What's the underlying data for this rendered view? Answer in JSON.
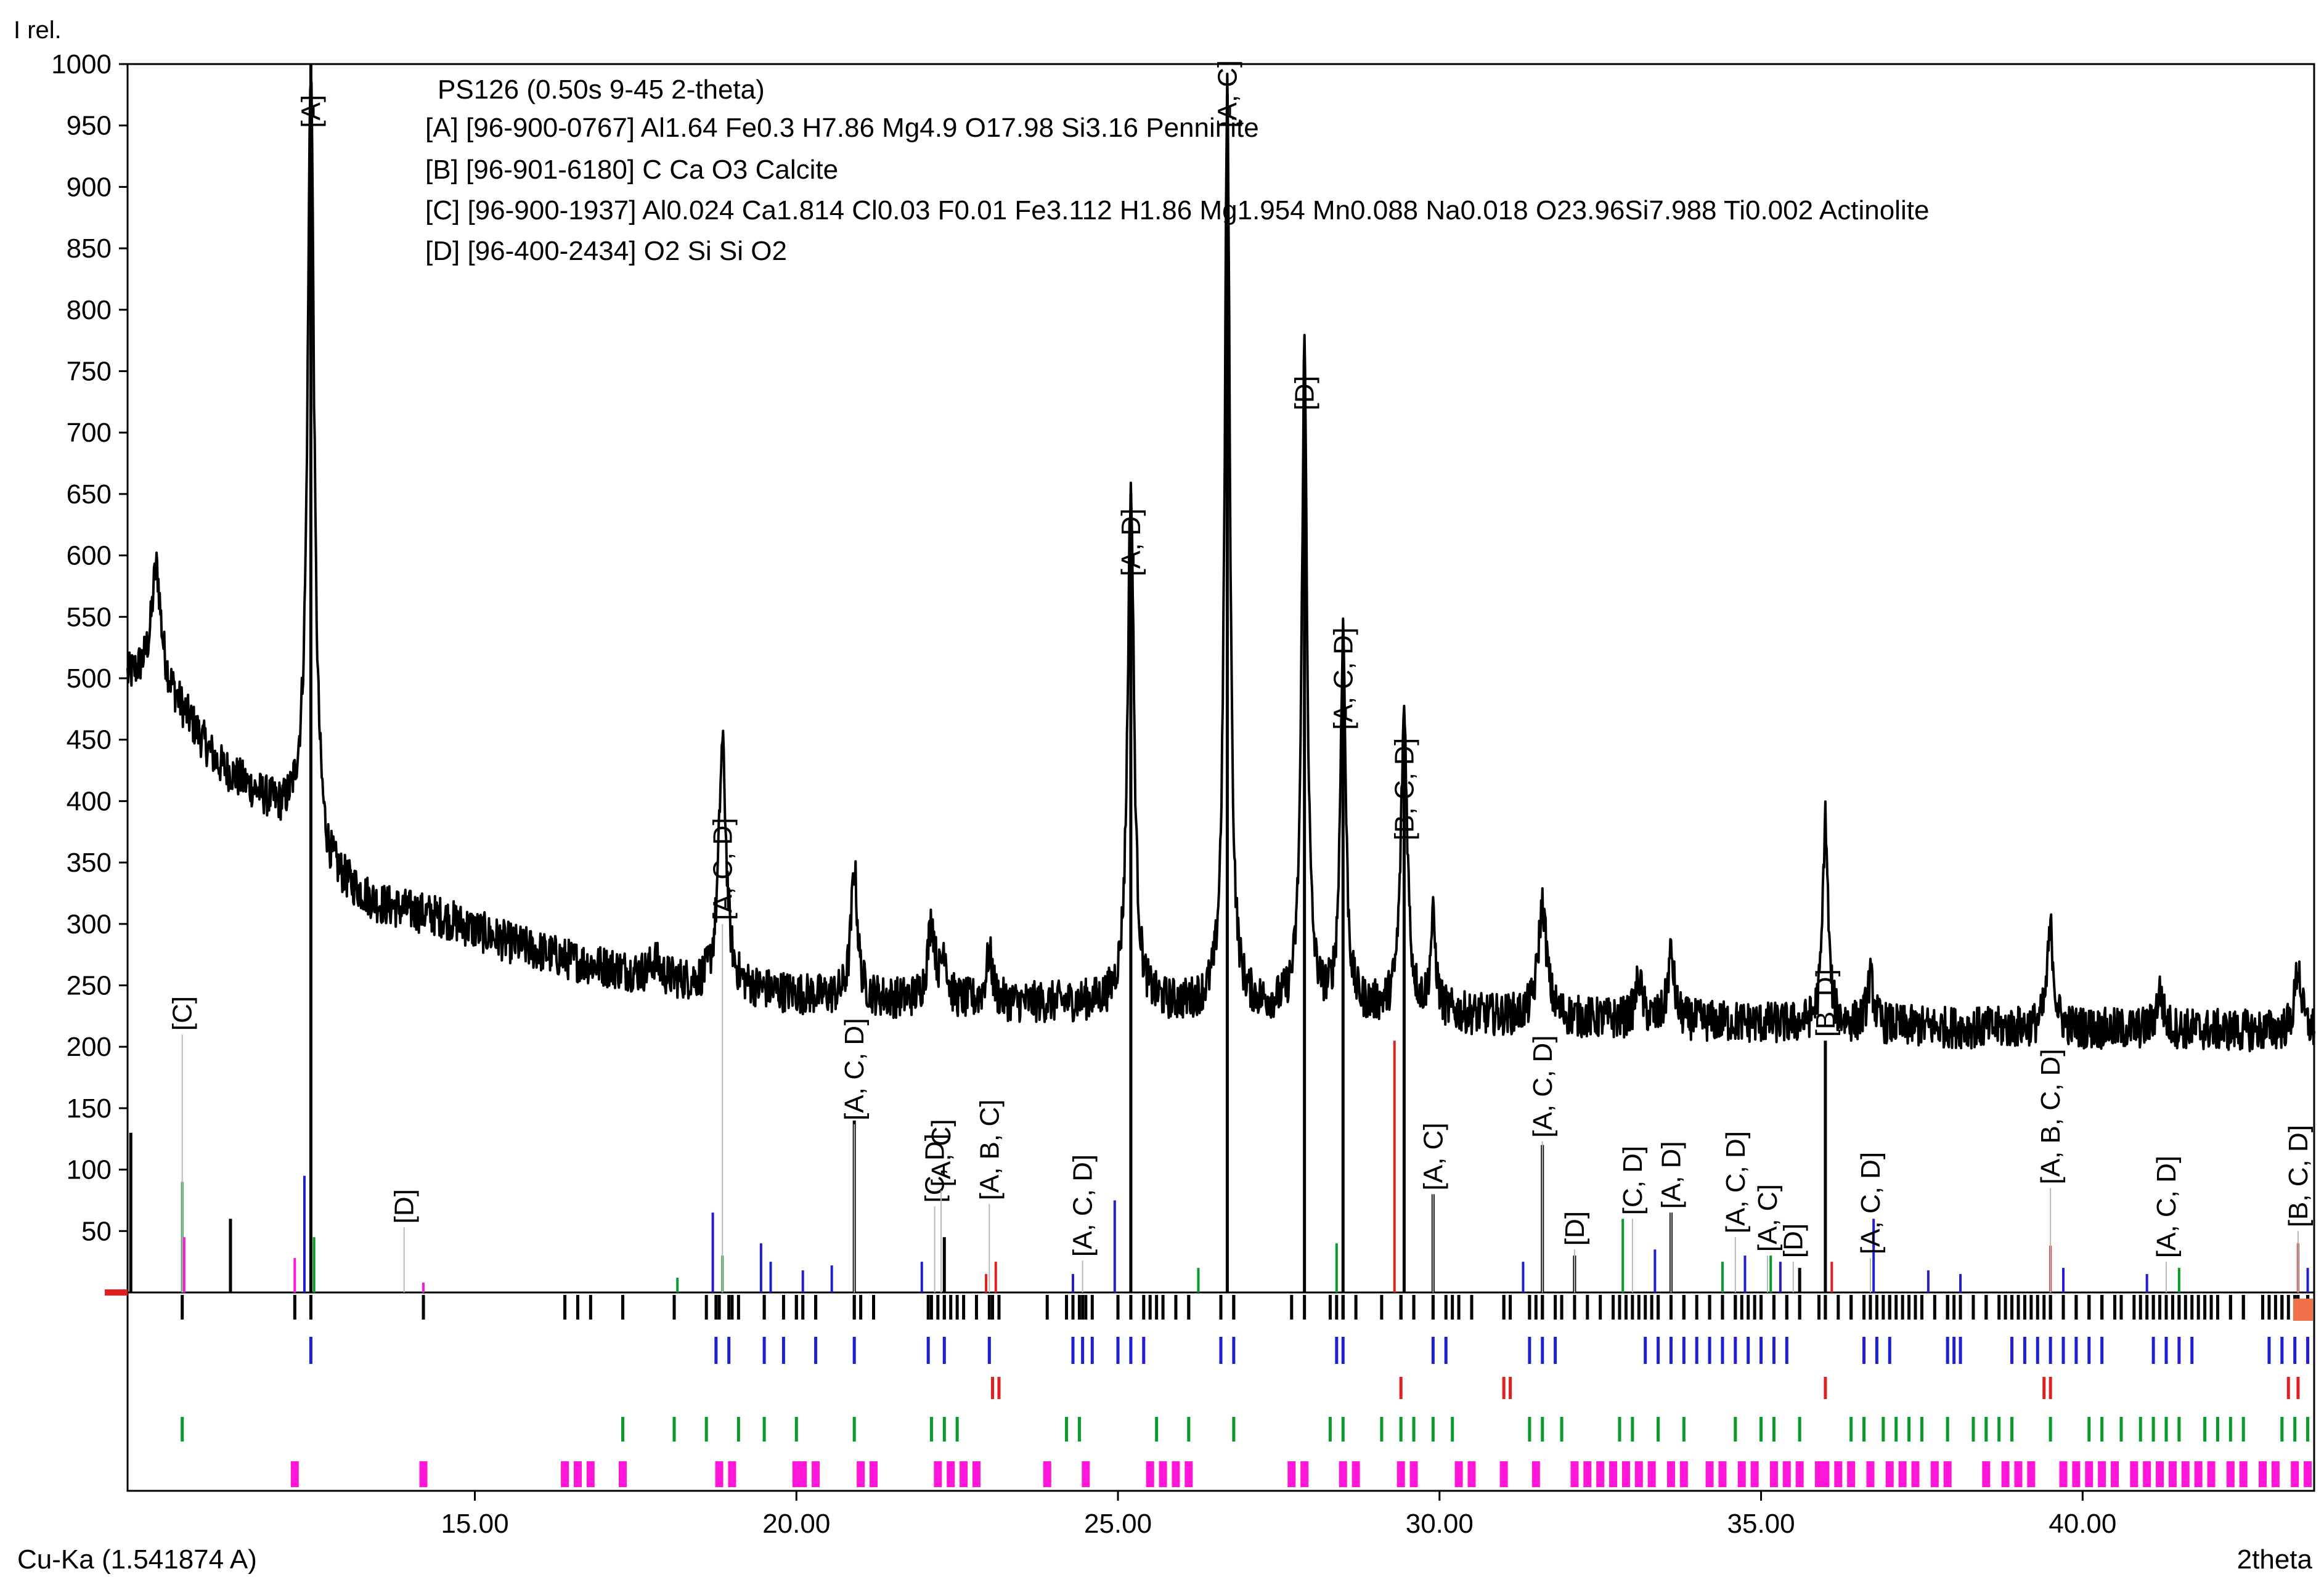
{
  "chart_data": {
    "type": "line",
    "title": "PS126 (0.50s 9-45 2-theta)",
    "xlabel": "2theta",
    "ylabel": "I rel.",
    "xlim": [
      9.6,
      43.6
    ],
    "ylim": [
      0,
      1000
    ],
    "x_ticks": [
      {
        "value": 15,
        "label": "15.00"
      },
      {
        "value": 20,
        "label": "20.00"
      },
      {
        "value": 25,
        "label": "25.00"
      },
      {
        "value": 30,
        "label": "30.00"
      },
      {
        "value": 35,
        "label": "35.00"
      },
      {
        "value": 40,
        "label": "40.00"
      }
    ],
    "y_ticks": [
      {
        "value": 1000,
        "label": "1000"
      },
      {
        "value": 950,
        "label": "950"
      },
      {
        "value": 900,
        "label": "900"
      },
      {
        "value": 850,
        "label": "850"
      },
      {
        "value": 800,
        "label": "800"
      },
      {
        "value": 750,
        "label": "750"
      },
      {
        "value": 700,
        "label": "700"
      },
      {
        "value": 650,
        "label": "650"
      },
      {
        "value": 600,
        "label": "600"
      },
      {
        "value": 550,
        "label": "550"
      },
      {
        "value": 500,
        "label": "500"
      },
      {
        "value": 450,
        "label": "450"
      },
      {
        "value": 400,
        "label": "400"
      },
      {
        "value": 350,
        "label": "350"
      },
      {
        "value": 300,
        "label": "300"
      },
      {
        "value": 250,
        "label": "250"
      },
      {
        "value": 200,
        "label": "200"
      },
      {
        "value": 150,
        "label": "150"
      },
      {
        "value": 100,
        "label": "100"
      },
      {
        "value": 50,
        "label": "50"
      }
    ],
    "wavelength_label": "Cu-Ka (1.541874 A)",
    "grid": false,
    "legend_position": "top",
    "legend": [
      {
        "text": "[A] [96-900-0767] Al1.64 Fe0.3 H7.86 Mg4.9 O17.98 Si3.16  Penninite",
        "color": "#1f1fd0"
      },
      {
        "text": "[B] [96-901-6180] C Ca O3  Calcite",
        "color": "#e0201e"
      },
      {
        "text": "[C] [96-900-1937] Al0.024 Ca1.814 Cl0.03 F0.01 Fe3.112 H1.86 Mg1.954 Mn0.088 Na0.018 O23.96Si7.988 Ti0.002  Actinolite",
        "color": "#0a9a2a"
      },
      {
        "text": "[D] [96-400-2434] O2 Si Si O2",
        "color": "#ff16d8"
      }
    ],
    "baseline": [
      [
        9.6,
        500
      ],
      [
        10.0,
        510
      ],
      [
        10.5,
        470
      ],
      [
        11.0,
        430
      ],
      [
        11.5,
        410
      ],
      [
        12.0,
        390
      ],
      [
        12.3,
        390
      ],
      [
        12.7,
        340
      ],
      [
        13.5,
        315
      ],
      [
        14.5,
        305
      ],
      [
        15.5,
        285
      ],
      [
        16.5,
        270
      ],
      [
        17.5,
        260
      ],
      [
        18.5,
        250
      ],
      [
        19.5,
        245
      ],
      [
        20.5,
        240
      ],
      [
        21.5,
        238
      ],
      [
        22.5,
        236
      ],
      [
        23.5,
        235
      ],
      [
        24.5,
        235
      ],
      [
        25.5,
        233
      ],
      [
        26.5,
        232
      ],
      [
        27.5,
        230
      ],
      [
        28.5,
        230
      ],
      [
        29.5,
        228
      ],
      [
        30.5,
        225
      ],
      [
        31.5,
        223
      ],
      [
        32.5,
        222
      ],
      [
        33.5,
        220
      ],
      [
        34.5,
        220
      ],
      [
        35.5,
        218
      ],
      [
        36.5,
        217
      ],
      [
        37.5,
        216
      ],
      [
        38.5,
        215
      ],
      [
        39.5,
        215
      ],
      [
        40.5,
        214
      ],
      [
        41.5,
        214
      ],
      [
        42.5,
        213
      ],
      [
        43.6,
        212
      ]
    ],
    "peaks": [
      {
        "x": 10.05,
        "y": 590,
        "w": 0.08
      },
      {
        "x": 12.45,
        "y": 1000,
        "w": 0.06
      },
      {
        "x": 17.8,
        "y": 270,
        "w": 0.08
      },
      {
        "x": 18.85,
        "y": 445,
        "w": 0.07
      },
      {
        "x": 20.9,
        "y": 345,
        "w": 0.06
      },
      {
        "x": 22.1,
        "y": 300,
        "w": 0.07
      },
      {
        "x": 22.3,
        "y": 275,
        "w": 0.05
      },
      {
        "x": 23.0,
        "y": 275,
        "w": 0.06
      },
      {
        "x": 25.2,
        "y": 655,
        "w": 0.06
      },
      {
        "x": 26.7,
        "y": 975,
        "w": 0.05
      },
      {
        "x": 27.9,
        "y": 765,
        "w": 0.05
      },
      {
        "x": 28.5,
        "y": 535,
        "w": 0.05
      },
      {
        "x": 29.45,
        "y": 470,
        "w": 0.06
      },
      {
        "x": 29.9,
        "y": 300,
        "w": 0.05
      },
      {
        "x": 31.6,
        "y": 315,
        "w": 0.08
      },
      {
        "x": 33.1,
        "y": 255,
        "w": 0.06
      },
      {
        "x": 33.6,
        "y": 275,
        "w": 0.06
      },
      {
        "x": 36.0,
        "y": 385,
        "w": 0.05
      },
      {
        "x": 36.7,
        "y": 255,
        "w": 0.06
      },
      {
        "x": 39.5,
        "y": 295,
        "w": 0.06
      },
      {
        "x": 41.2,
        "y": 245,
        "w": 0.06
      },
      {
        "x": 43.35,
        "y": 265,
        "w": 0.06
      }
    ],
    "peak_labels": [
      {
        "x": 10.45,
        "y": 210,
        "label": "[C]",
        "line": true
      },
      {
        "x": 12.45,
        "y": 945,
        "label": "[A]",
        "line": false
      },
      {
        "x": 13.9,
        "y": 53,
        "label": "[D]",
        "line": true
      },
      {
        "x": 18.85,
        "y": 300,
        "label": "[A, C, D]",
        "line": true
      },
      {
        "x": 20.9,
        "y": 137,
        "label": "[A, C, D]",
        "line": true
      },
      {
        "x": 22.15,
        "y": 70,
        "label": "[C, D]",
        "line": true
      },
      {
        "x": 22.25,
        "y": 83,
        "label": "[A, C]",
        "line": true
      },
      {
        "x": 23.0,
        "y": 72,
        "label": "[A, B, C]",
        "line": true
      },
      {
        "x": 24.45,
        "y": 26,
        "label": "[A, C, D]",
        "line": true
      },
      {
        "x": 25.2,
        "y": 580,
        "label": "[A, D]",
        "line": false
      },
      {
        "x": 26.7,
        "y": 945,
        "label": "[A, C]",
        "line": false
      },
      {
        "x": 27.9,
        "y": 715,
        "label": "[D]",
        "line": false
      },
      {
        "x": 28.5,
        "y": 455,
        "label": "[A, C, D]",
        "line": false
      },
      {
        "x": 29.45,
        "y": 365,
        "label": "[B, C, D]",
        "line": false
      },
      {
        "x": 29.9,
        "y": 80,
        "label": "[A, C]",
        "line": true
      },
      {
        "x": 31.6,
        "y": 123,
        "label": "[A, C, D]",
        "line": true
      },
      {
        "x": 32.1,
        "y": 35,
        "label": "[D]",
        "line": true
      },
      {
        "x": 33.0,
        "y": 60,
        "label": "[C, D]",
        "line": true
      },
      {
        "x": 33.6,
        "y": 65,
        "label": "[A, D]",
        "line": true
      },
      {
        "x": 34.6,
        "y": 45,
        "label": "[A, C, D]",
        "line": true
      },
      {
        "x": 35.1,
        "y": 30,
        "label": "[A, C]",
        "line": true
      },
      {
        "x": 35.5,
        "y": 25,
        "label": "[D]",
        "line": true
      },
      {
        "x": 36.0,
        "y": 205,
        "label": "[B, D]",
        "line": false
      },
      {
        "x": 36.7,
        "y": 28,
        "label": "[A, C, D]",
        "line": true
      },
      {
        "x": 39.5,
        "y": 85,
        "label": "[A, B, C, D]",
        "line": true
      },
      {
        "x": 41.3,
        "y": 25,
        "label": "[A, C, D]",
        "line": true
      },
      {
        "x": 43.35,
        "y": 50,
        "label": "[B, C, D]",
        "line": true
      }
    ],
    "sticks": [
      {
        "x": 9.65,
        "y": 130,
        "color": "#000000"
      },
      {
        "x": 10.45,
        "y": 90,
        "color": "#0a9a2a"
      },
      {
        "x": 10.48,
        "y": 45,
        "color": "#ff16d8"
      },
      {
        "x": 11.2,
        "y": 60,
        "color": "#000000"
      },
      {
        "x": 12.35,
        "y": 95,
        "color": "#1f1fd0"
      },
      {
        "x": 12.45,
        "y": 1000,
        "color": "#000000"
      },
      {
        "x": 12.5,
        "y": 45,
        "color": "#0a9a2a"
      },
      {
        "x": 12.2,
        "y": 28,
        "color": "#ff16d8"
      },
      {
        "x": 14.2,
        "y": 8,
        "color": "#ff16d8"
      },
      {
        "x": 18.15,
        "y": 12,
        "color": "#0a9a2a"
      },
      {
        "x": 18.7,
        "y": 65,
        "color": "#1f1fd0"
      },
      {
        "x": 18.85,
        "y": 30,
        "color": "#0a9a2a"
      },
      {
        "x": 19.45,
        "y": 40,
        "color": "#1f1fd0"
      },
      {
        "x": 19.6,
        "y": 25,
        "color": "#1f1fd0"
      },
      {
        "x": 20.1,
        "y": 18,
        "color": "#1f1fd0"
      },
      {
        "x": 20.55,
        "y": 22,
        "color": "#1f1fd0"
      },
      {
        "x": 20.9,
        "y": 140,
        "color": "#000000"
      },
      {
        "x": 21.95,
        "y": 25,
        "color": "#1f1fd0"
      },
      {
        "x": 22.3,
        "y": 45,
        "color": "#000000"
      },
      {
        "x": 22.95,
        "y": 15,
        "color": "#e0201e"
      },
      {
        "x": 23.1,
        "y": 25,
        "color": "#e0201e"
      },
      {
        "x": 24.3,
        "y": 15,
        "color": "#1f1fd0"
      },
      {
        "x": 24.95,
        "y": 75,
        "color": "#1f1fd0"
      },
      {
        "x": 25.2,
        "y": 650,
        "color": "#000000"
      },
      {
        "x": 26.25,
        "y": 20,
        "color": "#0a9a2a"
      },
      {
        "x": 26.7,
        "y": 975,
        "color": "#000000"
      },
      {
        "x": 27.9,
        "y": 760,
        "color": "#000000"
      },
      {
        "x": 28.4,
        "y": 40,
        "color": "#0a9a2a"
      },
      {
        "x": 28.5,
        "y": 535,
        "color": "#000000"
      },
      {
        "x": 29.3,
        "y": 205,
        "color": "#e0201e"
      },
      {
        "x": 29.45,
        "y": 470,
        "color": "#000000"
      },
      {
        "x": 29.9,
        "y": 80,
        "color": "#000000"
      },
      {
        "x": 31.3,
        "y": 25,
        "color": "#1f1fd0"
      },
      {
        "x": 31.6,
        "y": 120,
        "color": "#000000"
      },
      {
        "x": 32.1,
        "y": 30,
        "color": "#000000"
      },
      {
        "x": 32.85,
        "y": 60,
        "color": "#0a9a2a"
      },
      {
        "x": 33.35,
        "y": 35,
        "color": "#1f1fd0"
      },
      {
        "x": 33.6,
        "y": 65,
        "color": "#000000"
      },
      {
        "x": 34.4,
        "y": 25,
        "color": "#0a9a2a"
      },
      {
        "x": 34.75,
        "y": 30,
        "color": "#1f1fd0"
      },
      {
        "x": 35.15,
        "y": 30,
        "color": "#0a9a2a"
      },
      {
        "x": 35.3,
        "y": 25,
        "color": "#1f1fd0"
      },
      {
        "x": 35.6,
        "y": 20,
        "color": "#000000"
      },
      {
        "x": 36.0,
        "y": 205,
        "color": "#000000"
      },
      {
        "x": 36.1,
        "y": 25,
        "color": "#e0201e"
      },
      {
        "x": 36.75,
        "y": 60,
        "color": "#1f1fd0"
      },
      {
        "x": 37.6,
        "y": 18,
        "color": "#1f1fd0"
      },
      {
        "x": 38.1,
        "y": 15,
        "color": "#1f1fd0"
      },
      {
        "x": 39.5,
        "y": 38,
        "color": "#e0201e"
      },
      {
        "x": 39.7,
        "y": 20,
        "color": "#1f1fd0"
      },
      {
        "x": 41.0,
        "y": 15,
        "color": "#1f1fd0"
      },
      {
        "x": 41.5,
        "y": 20,
        "color": "#0a9a2a"
      },
      {
        "x": 43.35,
        "y": 40,
        "color": "#e0201e"
      },
      {
        "x": 43.5,
        "y": 20,
        "color": "#1f1fd0"
      }
    ],
    "phase_ticks": {
      "A": {
        "color": "#1f1fd0",
        "row": 0,
        "x": [
          12.45,
          18.75,
          18.95,
          19.5,
          19.8,
          20.3,
          20.9,
          22.05,
          22.3,
          23.0,
          24.3,
          24.45,
          24.6,
          25.0,
          25.2,
          25.4,
          26.6,
          26.8,
          28.4,
          28.5,
          29.9,
          30.1,
          31.4,
          31.6,
          31.8,
          33.2,
          33.4,
          33.6,
          33.8,
          34.0,
          34.2,
          34.4,
          34.6,
          34.8,
          35.0,
          35.2,
          35.4,
          36.6,
          36.8,
          37.0,
          37.9,
          38.0,
          38.1,
          38.9,
          39.1,
          39.3,
          39.5,
          39.7,
          39.9,
          40.1,
          40.3,
          41.1,
          41.3,
          41.5,
          41.7,
          42.9,
          43.1,
          43.3,
          43.5
        ]
      },
      "B": {
        "color": "#e0201e",
        "row": 1,
        "x": [
          23.05,
          23.15,
          29.4,
          31.0,
          31.1,
          36.0,
          39.4,
          39.5,
          43.2,
          43.35
        ]
      },
      "C": {
        "color": "#0a9a2a",
        "row": 2,
        "x": [
          10.45,
          17.3,
          18.1,
          18.6,
          19.1,
          19.5,
          20.0,
          20.9,
          22.1,
          22.3,
          22.5,
          24.2,
          24.4,
          25.6,
          26.1,
          26.8,
          28.3,
          28.5,
          29.1,
          29.4,
          29.6,
          29.9,
          30.2,
          31.4,
          31.6,
          31.9,
          32.8,
          33.0,
          33.4,
          33.8,
          34.6,
          35.0,
          35.2,
          35.6,
          36.4,
          36.6,
          36.9,
          37.1,
          37.3,
          37.5,
          37.9,
          38.3,
          38.5,
          38.7,
          38.9,
          39.5,
          40.1,
          40.3,
          40.6,
          40.9,
          41.1,
          41.3,
          41.5,
          41.9,
          42.1,
          42.3,
          42.5,
          43.1,
          43.3,
          43.5
        ]
      },
      "D": {
        "color": "#ff16d8",
        "row": 3,
        "x": [
          12.2,
          14.2,
          16.4,
          16.6,
          16.8,
          17.3,
          18.8,
          19.0,
          20.0,
          20.1,
          20.3,
          21.0,
          21.2,
          22.2,
          22.4,
          22.6,
          22.8,
          23.9,
          24.5,
          25.5,
          25.7,
          25.9,
          26.1,
          27.7,
          27.9,
          28.5,
          28.7,
          29.4,
          29.6,
          30.3,
          30.5,
          31.0,
          31.5,
          32.1,
          32.3,
          32.5,
          32.7,
          32.9,
          33.1,
          33.3,
          33.6,
          33.8,
          34.2,
          34.4,
          34.7,
          34.9,
          35.2,
          35.4,
          35.6,
          35.9,
          36.0,
          36.2,
          36.4,
          36.7,
          37.0,
          37.2,
          37.4,
          37.7,
          37.9,
          38.5,
          38.8,
          39.0,
          39.2,
          39.7,
          39.9,
          40.1,
          40.3,
          40.5,
          40.8,
          41.0,
          41.2,
          41.4,
          41.6,
          41.8,
          42.0,
          42.3,
          42.5,
          42.8,
          43.0,
          43.3,
          43.5
        ]
      }
    }
  }
}
